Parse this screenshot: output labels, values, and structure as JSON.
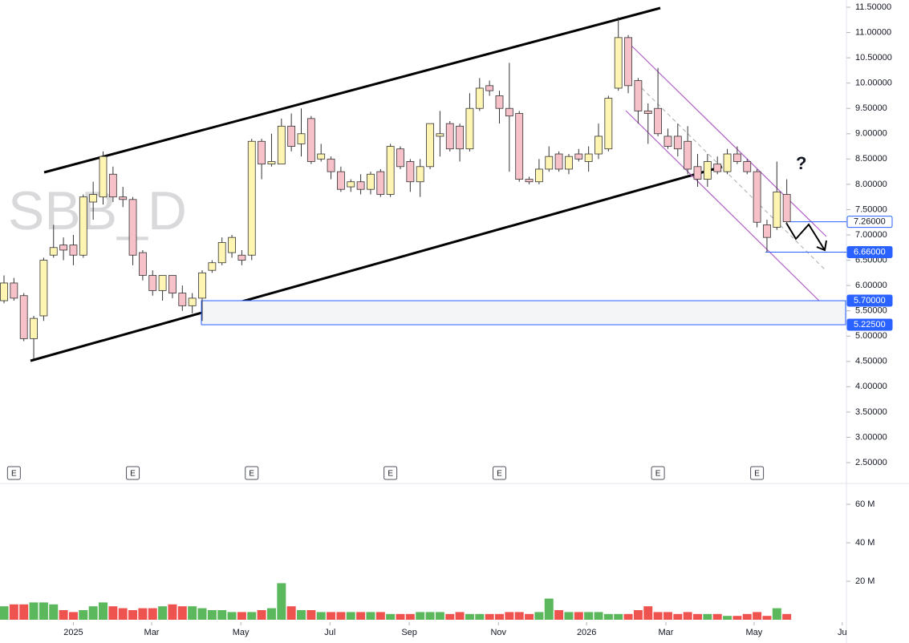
{
  "chart_data": {
    "type": "candlestick",
    "title": "SBB_D",
    "annotation": "?",
    "earnings_labels": [
      "E",
      "E",
      "E",
      "E",
      "E",
      "E",
      "E"
    ],
    "up_color": "#fff5b3",
    "down_color": "#f6c1c9",
    "volume_up_color": "#5cb85c",
    "volume_down_color": "#ef5350",
    "open": [
      5.7,
      6.05,
      5.8,
      4.95,
      5.4,
      6.6,
      6.8,
      6.8,
      6.6,
      7.65,
      7.75,
      8.2,
      7.75,
      7.7,
      6.65,
      6.2,
      5.9,
      6.2,
      5.85,
      5.6,
      5.75,
      6.3,
      6.45,
      6.65,
      6.6,
      6.6,
      8.85,
      8.4,
      8.4,
      9.15,
      8.8,
      9.3,
      8.5,
      8.5,
      8.25,
      7.95,
      8.05,
      7.9,
      8.25,
      7.8,
      8.7,
      8.45,
      8.05,
      8.35,
      8.95,
      9.2,
      9.15,
      8.7,
      9.5,
      9.95,
      9.75,
      9.5,
      9.4,
      8.1,
      8.05,
      8.3,
      8.6,
      8.3,
      8.6,
      8.45,
      8.6,
      8.7,
      9.9,
      10.9,
      10.05,
      9.45,
      9.5,
      8.95,
      8.95,
      8.85,
      8.35,
      8.1,
      8.4,
      8.25,
      8.6,
      8.45,
      8.25,
      7.2,
      7.15,
      7.8
    ],
    "high": [
      6.2,
      6.15,
      5.85,
      5.4,
      6.55,
      7.2,
      6.95,
      7.0,
      7.8,
      8.05,
      8.65,
      8.35,
      7.95,
      7.75,
      6.7,
      6.3,
      6.2,
      6.2,
      6.0,
      5.85,
      6.3,
      6.5,
      6.95,
      7.0,
      6.7,
      8.9,
      8.9,
      9.0,
      9.3,
      9.4,
      9.5,
      9.35,
      8.8,
      8.55,
      8.35,
      8.1,
      8.2,
      8.25,
      8.3,
      8.8,
      8.75,
      8.5,
      8.5,
      9.2,
      9.45,
      9.25,
      9.2,
      9.8,
      10.1,
      10.05,
      9.85,
      10.4,
      9.45,
      8.15,
      8.5,
      8.75,
      8.65,
      8.6,
      8.7,
      8.75,
      9.2,
      9.75,
      11.3,
      10.95,
      10.1,
      9.6,
      10.3,
      9.1,
      9.2,
      9.15,
      8.6,
      8.6,
      8.55,
      8.7,
      8.75,
      8.5,
      8.3,
      7.3,
      8.45,
      8.1
    ],
    "low": [
      5.65,
      5.7,
      4.9,
      4.55,
      5.3,
      6.55,
      6.5,
      6.4,
      6.55,
      7.3,
      7.6,
      7.65,
      7.55,
      6.4,
      6.1,
      5.8,
      5.7,
      5.75,
      5.5,
      5.45,
      5.3,
      6.25,
      6.4,
      6.55,
      6.4,
      6.5,
      8.1,
      8.35,
      8.4,
      8.65,
      8.55,
      8.4,
      8.45,
      8.1,
      7.85,
      7.85,
      7.8,
      7.8,
      7.75,
      7.75,
      8.3,
      7.85,
      7.75,
      8.3,
      8.55,
      8.65,
      8.45,
      8.65,
      9.45,
      9.75,
      9.2,
      8.25,
      8.05,
      8.0,
      8.0,
      8.25,
      8.25,
      8.2,
      8.45,
      8.25,
      8.5,
      8.65,
      9.85,
      9.8,
      9.2,
      8.8,
      8.95,
      8.7,
      8.55,
      8.2,
      7.95,
      7.95,
      8.2,
      8.2,
      8.4,
      8.2,
      7.15,
      6.66,
      7.1,
      7.2
    ],
    "close": [
      6.05,
      5.75,
      4.95,
      5.35,
      6.5,
      6.75,
      6.7,
      6.6,
      7.75,
      7.8,
      8.55,
      7.75,
      7.7,
      6.6,
      6.2,
      5.9,
      6.2,
      5.85,
      5.6,
      5.75,
      6.25,
      6.45,
      6.85,
      6.95,
      6.5,
      8.85,
      8.4,
      8.45,
      9.15,
      8.75,
      9.0,
      8.45,
      8.6,
      8.25,
      7.9,
      8.05,
      7.9,
      8.2,
      7.8,
      8.75,
      8.35,
      8.05,
      8.35,
      9.2,
      9.0,
      8.7,
      8.7,
      9.5,
      9.9,
      9.85,
      9.5,
      9.35,
      8.1,
      8.05,
      8.3,
      8.55,
      8.3,
      8.55,
      8.5,
      8.6,
      8.95,
      9.7,
      10.9,
      9.95,
      9.45,
      9.4,
      9.0,
      8.75,
      8.7,
      8.3,
      8.1,
      8.45,
      8.25,
      8.6,
      8.45,
      8.25,
      7.25,
      6.95,
      7.85,
      7.26
    ],
    "volume": [
      7,
      8,
      8,
      9,
      9,
      8,
      5,
      4,
      5,
      7,
      9,
      7,
      6,
      5,
      6,
      6,
      7,
      8,
      7,
      7,
      6,
      5,
      5,
      4,
      4,
      4,
      5,
      6,
      19,
      7,
      5,
      5,
      4,
      4,
      4,
      4,
      4,
      4,
      4,
      3,
      3,
      3,
      4,
      4,
      4,
      3,
      4,
      3,
      3,
      3,
      3,
      4,
      4,
      3,
      4,
      11,
      5,
      4,
      4,
      4,
      4,
      3,
      3,
      3,
      5,
      7,
      4,
      4,
      3,
      4,
      3,
      3,
      3,
      2,
      2,
      3,
      4,
      2,
      6,
      3
    ],
    "ylim": [
      2.5,
      11.5
    ],
    "yticks": [
      {
        "value": 2.5,
        "label": "2.50000"
      },
      {
        "value": 3.0,
        "label": "3.00000"
      },
      {
        "value": 3.5,
        "label": "3.50000"
      },
      {
        "value": 4.0,
        "label": "4.00000"
      },
      {
        "value": 4.5,
        "label": "4.50000"
      },
      {
        "value": 5.0,
        "label": "5.00000"
      },
      {
        "value": 5.5,
        "label": "5.50000"
      },
      {
        "value": 6.0,
        "label": "6.00000"
      },
      {
        "value": 6.5,
        "label": "6.50000"
      },
      {
        "value": 7.0,
        "label": "7.00000"
      },
      {
        "value": 7.5,
        "label": "7.50000"
      },
      {
        "value": 8.0,
        "label": "8.00000"
      },
      {
        "value": 8.5,
        "label": "8.50000"
      },
      {
        "value": 9.0,
        "label": "9.00000"
      },
      {
        "value": 9.5,
        "label": "9.50000"
      },
      {
        "value": 10.0,
        "label": "10.00000"
      },
      {
        "value": 10.5,
        "label": "10.50000"
      },
      {
        "value": 11.0,
        "label": "11.00000"
      },
      {
        "value": 11.5,
        "label": "11.50000"
      }
    ],
    "volume_ylim": [
      0,
      70
    ],
    "volume_ticks": [
      {
        "value": 20,
        "label": "20 M"
      },
      {
        "value": 40,
        "label": "40 M"
      },
      {
        "value": 60,
        "label": "60 M"
      }
    ],
    "xticks": [
      {
        "value": 7,
        "label": "2025"
      },
      {
        "value": 14.9,
        "label": "Mar"
      },
      {
        "value": 23.9,
        "label": "May"
      },
      {
        "value": 32.9,
        "label": "Jul"
      },
      {
        "value": 40.9,
        "label": "Sep"
      },
      {
        "value": 49.9,
        "label": "Nov"
      },
      {
        "value": 58.8,
        "label": "2026"
      },
      {
        "value": 66.8,
        "label": "Mar"
      },
      {
        "value": 75.7,
        "label": "May"
      },
      {
        "value": 84.6,
        "label": "Ju"
      }
    ],
    "levels": [
      {
        "value": 7.26,
        "label": "7.26000"
      },
      {
        "value": 6.66,
        "label": "6.66000"
      },
      {
        "value": 5.7,
        "label": "5.70000"
      },
      {
        "value": 5.225,
        "label": "5.22500"
      }
    ]
  }
}
